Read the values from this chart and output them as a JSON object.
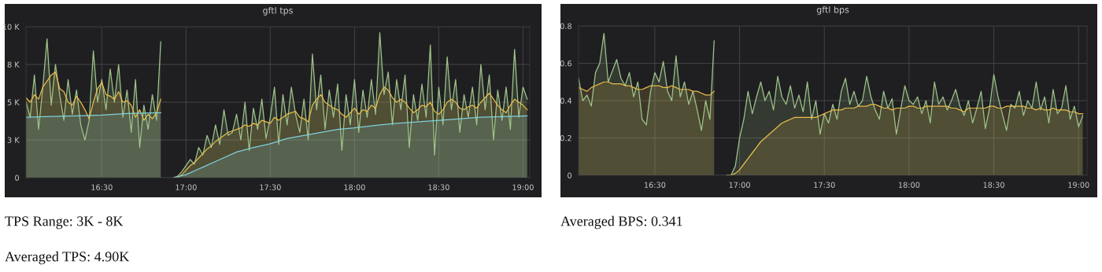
{
  "chart_data": [
    {
      "type": "area",
      "title": "gftl tps",
      "x": [
        16.05,
        16.075,
        16.1,
        16.125,
        16.15,
        16.175,
        16.2,
        16.225,
        16.25,
        16.275,
        16.3,
        16.325,
        16.35,
        16.375,
        16.4,
        16.425,
        16.45,
        16.475,
        16.5,
        16.525,
        16.55,
        16.575,
        16.6,
        16.625,
        16.65,
        16.675,
        16.7,
        16.725,
        16.75,
        16.775,
        16.8,
        16.825,
        16.85,
        16.9,
        16.925,
        16.95,
        16.975,
        17.0,
        17.025,
        17.05,
        17.075,
        17.1,
        17.125,
        17.15,
        17.175,
        17.2,
        17.225,
        17.25,
        17.275,
        17.3,
        17.325,
        17.35,
        17.375,
        17.4,
        17.425,
        17.45,
        17.475,
        17.5,
        17.525,
        17.55,
        17.575,
        17.6,
        17.625,
        17.65,
        17.675,
        17.7,
        17.725,
        17.75,
        17.775,
        17.8,
        17.825,
        17.85,
        17.875,
        17.9,
        17.925,
        17.95,
        17.975,
        18.0,
        18.025,
        18.05,
        18.075,
        18.1,
        18.125,
        18.15,
        18.175,
        18.2,
        18.225,
        18.25,
        18.275,
        18.3,
        18.325,
        18.35,
        18.375,
        18.4,
        18.425,
        18.45,
        18.475,
        18.5,
        18.525,
        18.55,
        18.575,
        18.6,
        18.625,
        18.65,
        18.675,
        18.7,
        18.725,
        18.75,
        18.775,
        18.8,
        18.825,
        18.85,
        18.875,
        18.9,
        18.925,
        18.95,
        18.975,
        19.0,
        19.025
      ],
      "series": [
        {
          "color": "#9fc48a",
          "values": [
            5000,
            4000,
            6800,
            3200,
            6000,
            9200,
            4800,
            7500,
            5500,
            3800,
            6500,
            4200,
            5800,
            3500,
            2500,
            3800,
            8400,
            5000,
            6500,
            4500,
            7200,
            5000,
            7500,
            4000,
            5800,
            3000,
            6500,
            2000,
            4800,
            3200,
            5500,
            3800,
            9000,
            null,
            0,
            100,
            400,
            800,
            1200,
            900,
            2000,
            1500,
            2800,
            2000,
            3500,
            2200,
            4500,
            2800,
            3000,
            4200,
            2500,
            5000,
            1800,
            4600,
            3200,
            5200,
            2600,
            4000,
            6000,
            2200,
            5500,
            3500,
            6000,
            4200,
            3000,
            5200,
            2500,
            8200,
            4500,
            6800,
            3200,
            5800,
            4000,
            6200,
            1800,
            5500,
            3500,
            6500,
            3000,
            5800,
            4000,
            6500,
            4200,
            9600,
            5500,
            7000,
            3500,
            6500,
            4500,
            6800,
            2000,
            5500,
            3800,
            6200,
            4000,
            8800,
            1500,
            6000,
            3500,
            8000,
            4500,
            6500,
            3000,
            5500,
            4000,
            6000,
            3500,
            7500,
            4500,
            6800,
            2500,
            5800,
            3800,
            6000,
            3200,
            8500,
            4000,
            6000,
            5200
          ]
        },
        {
          "color": "#e8bd4c",
          "values": [
            5300,
            5000,
            5500,
            5200,
            6000,
            6400,
            6800,
            7000,
            5900,
            5700,
            5000,
            4800,
            5400,
            5000,
            4500,
            3900,
            5000,
            5900,
            6300,
            5500,
            5400,
            5200,
            5700,
            5000,
            5100,
            4800,
            4000,
            4500,
            3800,
            4200,
            3900,
            4300,
            5200,
            null,
            0,
            0,
            200,
            500,
            800,
            1000,
            1300,
            1600,
            1900,
            2100,
            2400,
            2600,
            2800,
            3000,
            3100,
            3200,
            3300,
            3500,
            3400,
            3600,
            3500,
            3800,
            3700,
            3600,
            4000,
            3800,
            4000,
            4200,
            4300,
            4400,
            4000,
            3900,
            3700,
            4800,
            5200,
            5500,
            5000,
            4800,
            4600,
            4500,
            4200,
            4000,
            4300,
            4600,
            4200,
            4500,
            4400,
            4800,
            4600,
            5500,
            6000,
            5800,
            5300,
            5000,
            5200,
            5000,
            4600,
            4300,
            4500,
            4800,
            4700,
            5000,
            4400,
            4200,
            4500,
            5000,
            5200,
            5000,
            4600,
            4500,
            4700,
            4800,
            4600,
            5000,
            5300,
            5600,
            5200,
            4800,
            4500,
            4300,
            4800,
            5200,
            5000,
            4800,
            4500
          ]
        },
        {
          "color": "#7fd0dc",
          "x": [
            16.05,
            16.2,
            16.35,
            16.5,
            16.65,
            16.85,
            16.9,
            16.925,
            17.0,
            17.1,
            17.2,
            17.3,
            17.4,
            17.5,
            17.6,
            17.75,
            17.9,
            18.0,
            18.15,
            18.25,
            18.5,
            18.75,
            19.025
          ],
          "values": [
            4000,
            4050,
            4100,
            4150,
            4250,
            4300,
            null,
            0,
            200,
            700,
            1200,
            1700,
            2000,
            2250,
            2600,
            2900,
            3200,
            3300,
            3500,
            3600,
            3800,
            4000,
            4100
          ]
        }
      ],
      "xlim": [
        16.05,
        19.04
      ],
      "xticks": [
        {
          "value": 16.5,
          "label": "16:30"
        },
        {
          "value": 17,
          "label": "17:00"
        },
        {
          "value": 17.5,
          "label": "17:30"
        },
        {
          "value": 18,
          "label": "18:00"
        },
        {
          "value": 18.5,
          "label": "18:30"
        },
        {
          "value": 19,
          "label": "19:00"
        }
      ],
      "ylim": [
        0,
        10000
      ],
      "yticks": [
        {
          "value": 0,
          "label": "0"
        },
        {
          "value": 2500,
          "label": "3 K"
        },
        {
          "value": 5000,
          "label": "5 K"
        },
        {
          "value": 7500,
          "label": "8 K"
        },
        {
          "value": 10000,
          "label": "10 K"
        }
      ],
      "grid": true,
      "annotations": [
        "TPS Range: 3K - 8K",
        "Averaged TPS: 4.90K"
      ]
    },
    {
      "type": "area",
      "title": "gftl bps",
      "x": [
        16.05,
        16.075,
        16.1,
        16.125,
        16.15,
        16.175,
        16.2,
        16.225,
        16.25,
        16.275,
        16.3,
        16.325,
        16.35,
        16.375,
        16.4,
        16.425,
        16.45,
        16.475,
        16.5,
        16.525,
        16.55,
        16.575,
        16.6,
        16.625,
        16.65,
        16.675,
        16.7,
        16.725,
        16.75,
        16.775,
        16.8,
        16.825,
        16.85,
        16.9,
        16.925,
        16.95,
        16.975,
        17.0,
        17.025,
        17.05,
        17.075,
        17.1,
        17.125,
        17.15,
        17.175,
        17.2,
        17.225,
        17.25,
        17.275,
        17.3,
        17.325,
        17.35,
        17.375,
        17.4,
        17.425,
        17.45,
        17.475,
        17.5,
        17.525,
        17.55,
        17.575,
        17.6,
        17.625,
        17.65,
        17.675,
        17.7,
        17.725,
        17.75,
        17.775,
        17.8,
        17.825,
        17.85,
        17.875,
        17.9,
        17.925,
        17.95,
        17.975,
        18.0,
        18.025,
        18.05,
        18.075,
        18.1,
        18.125,
        18.15,
        18.175,
        18.2,
        18.225,
        18.25,
        18.275,
        18.3,
        18.325,
        18.35,
        18.375,
        18.4,
        18.425,
        18.45,
        18.475,
        18.5,
        18.525,
        18.55,
        18.575,
        18.6,
        18.625,
        18.65,
        18.675,
        18.7,
        18.725,
        18.75,
        18.775,
        18.8,
        18.825,
        18.85,
        18.875,
        18.9,
        18.925,
        18.95,
        18.975,
        19.0,
        19.025
      ],
      "series": [
        {
          "color": "#9fc48a",
          "values": [
            0.52,
            0.4,
            0.43,
            0.37,
            0.55,
            0.6,
            0.76,
            0.5,
            0.56,
            0.62,
            0.52,
            0.48,
            0.55,
            0.42,
            0.5,
            0.3,
            0.27,
            0.45,
            0.55,
            0.5,
            0.61,
            0.45,
            0.4,
            0.64,
            0.42,
            0.5,
            0.38,
            0.45,
            0.35,
            0.24,
            0.4,
            0.3,
            0.72,
            null,
            0,
            0,
            0.05,
            0.2,
            0.3,
            0.45,
            0.33,
            0.42,
            0.5,
            0.4,
            0.45,
            0.35,
            0.53,
            0.42,
            0.38,
            0.48,
            0.36,
            0.43,
            0.34,
            0.5,
            0.3,
            0.4,
            0.22,
            0.33,
            0.28,
            0.38,
            0.3,
            0.45,
            0.52,
            0.38,
            0.45,
            0.37,
            0.4,
            0.53,
            0.42,
            0.35,
            0.3,
            0.45,
            0.36,
            0.41,
            0.22,
            0.35,
            0.48,
            0.4,
            0.38,
            0.42,
            0.33,
            0.4,
            0.28,
            0.5,
            0.38,
            0.42,
            0.35,
            0.4,
            0.46,
            0.37,
            0.32,
            0.4,
            0.28,
            0.36,
            0.45,
            0.25,
            0.36,
            0.54,
            0.42,
            0.33,
            0.24,
            0.38,
            0.36,
            0.45,
            0.32,
            0.4,
            0.36,
            0.5,
            0.35,
            0.42,
            0.28,
            0.46,
            0.33,
            0.36,
            0.48,
            0.3,
            0.37,
            0.26,
            0.32
          ]
        },
        {
          "color": "#e8bd4c",
          "values": [
            0.47,
            0.46,
            0.45,
            0.47,
            0.48,
            0.49,
            0.5,
            0.5,
            0.49,
            0.49,
            0.49,
            0.48,
            0.48,
            0.47,
            0.46,
            0.46,
            0.47,
            0.48,
            0.48,
            0.48,
            0.47,
            0.47,
            0.48,
            0.47,
            0.46,
            0.46,
            0.46,
            0.45,
            0.45,
            0.44,
            0.43,
            0.43,
            0.45,
            null,
            0,
            0,
            0.01,
            0.03,
            0.06,
            0.09,
            0.12,
            0.15,
            0.18,
            0.2,
            0.22,
            0.24,
            0.26,
            0.28,
            0.29,
            0.3,
            0.31,
            0.31,
            0.31,
            0.31,
            0.31,
            0.31,
            0.32,
            0.33,
            0.34,
            0.35,
            0.35,
            0.35,
            0.36,
            0.36,
            0.36,
            0.37,
            0.37,
            0.37,
            0.38,
            0.38,
            0.37,
            0.36,
            0.36,
            0.35,
            0.36,
            0.36,
            0.36,
            0.37,
            0.37,
            0.36,
            0.36,
            0.37,
            0.37,
            0.37,
            0.37,
            0.37,
            0.37,
            0.36,
            0.36,
            0.35,
            0.34,
            0.36,
            0.36,
            0.36,
            0.36,
            0.36,
            0.37,
            0.37,
            0.36,
            0.36,
            0.37,
            0.37,
            0.37,
            0.37,
            0.37,
            0.36,
            0.36,
            0.35,
            0.36,
            0.35,
            0.35,
            0.36,
            0.35,
            0.35,
            0.35,
            0.34,
            0.34,
            0.33,
            0.33
          ]
        }
      ],
      "xlim": [
        16.05,
        19.05
      ],
      "xticks": [
        {
          "value": 16.5,
          "label": "16:30"
        },
        {
          "value": 17,
          "label": "17:00"
        },
        {
          "value": 17.5,
          "label": "17:30"
        },
        {
          "value": 18,
          "label": "18:00"
        },
        {
          "value": 18.5,
          "label": "18:30"
        },
        {
          "value": 19,
          "label": "19:00"
        }
      ],
      "ylim": [
        0,
        0.8
      ],
      "yticks": [
        0,
        0.2,
        0.4,
        0.6,
        0.8
      ],
      "grid": true,
      "annotations": [
        "Averaged BPS: 0.341"
      ]
    }
  ]
}
